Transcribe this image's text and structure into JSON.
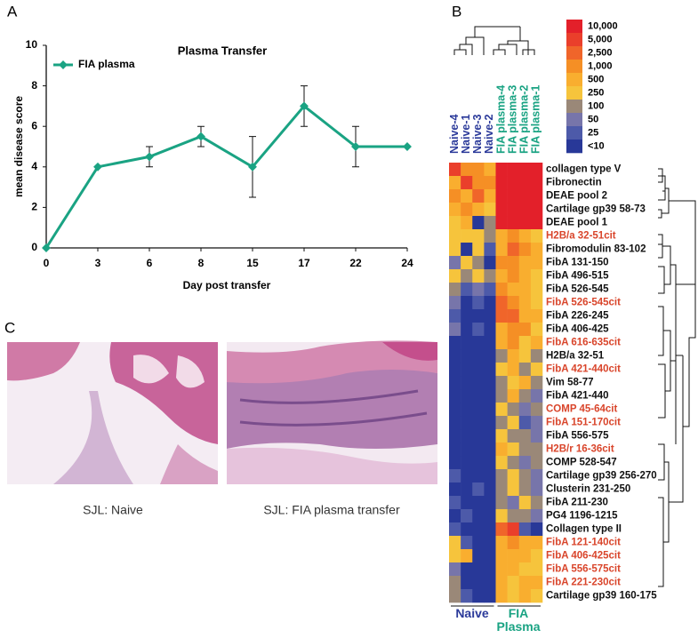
{
  "panels": {
    "a": "A",
    "b": "B",
    "c": "C",
    "image_left_caption": "SJL: Naive",
    "image_right_caption": "SJL: FIA plasma transfer"
  },
  "chart_data": [
    {
      "type": "line",
      "title": "Plasma Transfer",
      "x_label": "Day post transfer",
      "y_label": "mean disease score",
      "categories": [
        "0",
        "3",
        "6",
        "8",
        "15",
        "17",
        "22",
        "24"
      ],
      "series": [
        {
          "name": "FIA plasma",
          "color": "#1aa383",
          "values": [
            0,
            4,
            4.5,
            5.5,
            4,
            7,
            5,
            5
          ],
          "errors": [
            null,
            null,
            0.5,
            0.5,
            1.5,
            1,
            1,
            null
          ]
        }
      ],
      "ylim": [
        0,
        10
      ],
      "yticks": [
        0,
        2,
        4,
        6,
        8,
        10
      ],
      "legend": "top-left"
    },
    {
      "type": "heatmap",
      "columns": [
        "Naive-4",
        "Naive-1",
        "Naive-3",
        "Naive-2",
        "FIA plasma-4",
        "FIA plasma-3",
        "FIA plasma-2",
        "FIA plasma-1"
      ],
      "column_colors": [
        "#2b3a9a",
        "#2b3a9a",
        "#2b3a9a",
        "#2b3a9a",
        "#1aa383",
        "#1aa383",
        "#1aa383",
        "#1aa383"
      ],
      "groups": [
        "Naive",
        "FIA Plasma"
      ],
      "rows": [
        "collagen type V",
        "Fibronectin",
        "DEAE pool 2",
        "Cartilage gp39 58-73",
        "DEAE pool 1",
        "H2B/a 32-51cit",
        "Fibromodulin 83-102",
        "FibA 131-150",
        "FibA 496-515",
        "FibA 526-545",
        "FibA 526-545cit",
        "FibA 226-245",
        "FibA 406-425",
        "FibA 616-635cit",
        "H2B/a 32-51",
        "FibA 421-440cit",
        "Vim 58-77",
        "FibA 421-440",
        "COMP 45-64cit",
        "FibA 151-170cit",
        "FibA 556-575",
        "H2B/r 16-36cit",
        "COMP 528-547",
        "Cartilage gp39 256-270",
        "Clusterin 231-250",
        "FibA 211-230",
        "PG4 1196-1215",
        "Collagen type II",
        "FibA 121-140cit",
        "FibA 406-425cit",
        "FibA 556-575cit",
        "FibA 221-230cit",
        "Cartilage gp39 160-175"
      ],
      "row_colors": [
        "#111",
        "#111",
        "#111",
        "#111",
        "#111",
        "#d9452b",
        "#111",
        "#111",
        "#111",
        "#111",
        "#d9452b",
        "#111",
        "#111",
        "#d9452b",
        "#111",
        "#d9452b",
        "#111",
        "#111",
        "#d9452b",
        "#d9452b",
        "#111",
        "#d9452b",
        "#111",
        "#111",
        "#111",
        "#111",
        "#111",
        "#111",
        "#d9452b",
        "#d9452b",
        "#d9452b",
        "#d9452b",
        "#111"
      ],
      "values": [
        [
          5000,
          1000,
          1000,
          500,
          10000,
          10000,
          10000,
          10000
        ],
        [
          500,
          5000,
          1000,
          1000,
          10000,
          10000,
          10000,
          10000
        ],
        [
          1000,
          500,
          2500,
          500,
          10000,
          10000,
          10000,
          10000
        ],
        [
          500,
          1000,
          500,
          250,
          10000,
          10000,
          10000,
          10000
        ],
        [
          250,
          500,
          10,
          100,
          10000,
          10000,
          10000,
          10000
        ],
        [
          250,
          250,
          250,
          100,
          500,
          1000,
          500,
          250
        ],
        [
          250,
          10,
          250,
          25,
          500,
          2500,
          1000,
          500
        ],
        [
          50,
          250,
          100,
          10,
          1000,
          1000,
          500,
          500
        ],
        [
          250,
          100,
          250,
          100,
          500,
          1000,
          500,
          250
        ],
        [
          100,
          25,
          50,
          25,
          1000,
          500,
          500,
          250
        ],
        [
          50,
          10,
          25,
          10,
          2500,
          1000,
          500,
          250
        ],
        [
          25,
          10,
          10,
          10,
          2500,
          2500,
          500,
          500
        ],
        [
          50,
          10,
          25,
          10,
          500,
          1000,
          1000,
          250
        ],
        [
          10,
          10,
          10,
          10,
          500,
          1000,
          250,
          500
        ],
        [
          10,
          10,
          10,
          10,
          100,
          500,
          250,
          100
        ],
        [
          10,
          10,
          10,
          10,
          250,
          500,
          100,
          250
        ],
        [
          10,
          10,
          10,
          10,
          100,
          250,
          500,
          100
        ],
        [
          10,
          10,
          10,
          10,
          100,
          500,
          100,
          50
        ],
        [
          10,
          10,
          10,
          10,
          250,
          100,
          50,
          100
        ],
        [
          10,
          10,
          10,
          10,
          100,
          250,
          25,
          50
        ],
        [
          10,
          10,
          10,
          10,
          250,
          100,
          100,
          50
        ],
        [
          10,
          10,
          10,
          10,
          500,
          250,
          100,
          100
        ],
        [
          10,
          10,
          10,
          10,
          250,
          100,
          50,
          100
        ],
        [
          25,
          10,
          10,
          10,
          100,
          250,
          100,
          50
        ],
        [
          10,
          10,
          25,
          10,
          100,
          250,
          100,
          50
        ],
        [
          25,
          10,
          10,
          10,
          100,
          50,
          250,
          100
        ],
        [
          10,
          25,
          10,
          10,
          250,
          100,
          100,
          50
        ],
        [
          25,
          10,
          10,
          10,
          2500,
          5000,
          25,
          10
        ],
        [
          250,
          25,
          10,
          10,
          500,
          1000,
          500,
          500
        ],
        [
          250,
          500,
          10,
          10,
          500,
          500,
          500,
          250
        ],
        [
          50,
          10,
          10,
          10,
          500,
          500,
          250,
          250
        ],
        [
          100,
          10,
          10,
          10,
          500,
          250,
          500,
          500
        ],
        [
          100,
          25,
          10,
          10,
          500,
          250,
          500,
          250
        ]
      ],
      "colorbar": {
        "ticks": [
          {
            "value": 10000,
            "label": "10,000"
          },
          {
            "value": 5000,
            "label": "5,000"
          },
          {
            "value": 2500,
            "label": "2,500"
          },
          {
            "value": 1000,
            "label": "1,000"
          },
          {
            "value": 500,
            "label": "500"
          },
          {
            "value": 250,
            "label": "250"
          },
          100,
          50,
          25,
          {
            "value": 10,
            "label": "<10"
          }
        ],
        "colors": [
          "#e3202a",
          "#ea3f2b",
          "#f0652a",
          "#f58f25",
          "#f9ae2f",
          "#f6c43c",
          "#9a8878",
          "#7775aa",
          "#4d5aa9",
          "#283898"
        ]
      }
    }
  ]
}
